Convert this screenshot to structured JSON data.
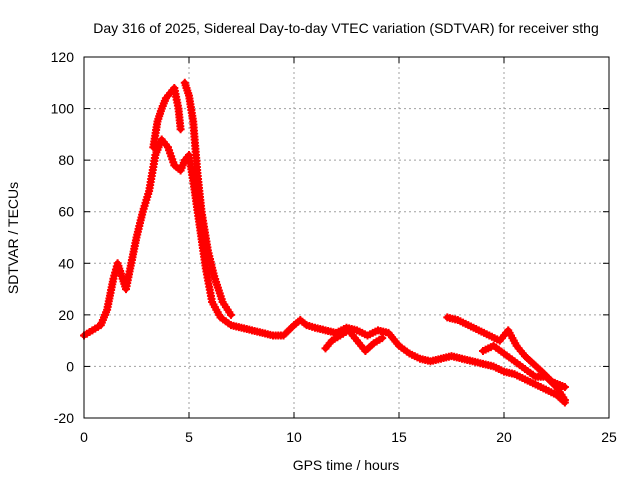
{
  "chart_data": {
    "type": "scatter",
    "title": "Day 316 of 2025, Sidereal Day-to-day VTEC variation (SDTVAR) for receiver sthg",
    "xlabel": "GPS time / hours",
    "ylabel": "SDTVAR / TECUs",
    "xlim": [
      0,
      25
    ],
    "ylim": [
      -20,
      120
    ],
    "xticks": [
      0,
      5,
      10,
      15,
      20,
      25
    ],
    "yticks": [
      -20,
      0,
      20,
      40,
      60,
      80,
      100,
      120
    ],
    "grid": true,
    "marker": "plus",
    "color": "#ff0000",
    "series": [
      {
        "name": "main",
        "x": [
          0,
          0.4,
          0.8,
          1.1,
          1.4,
          1.6,
          1.8,
          2.0,
          2.2,
          2.5,
          2.8,
          3.1,
          3.4,
          3.7,
          4.0,
          4.3,
          4.6,
          4.8,
          5.0,
          5.2,
          5.5,
          5.8,
          6.1,
          6.5,
          7.0,
          7.5,
          8.0,
          8.5,
          9.0,
          9.5,
          10.0,
          10.3,
          10.6,
          11.0,
          11.5,
          12.0,
          12.5,
          13.0,
          13.5,
          14.0,
          14.5,
          15.0,
          15.5,
          16.0,
          16.5,
          17.0,
          17.5,
          18.0,
          18.5,
          19.0,
          19.5,
          20.0,
          20.5,
          21.0,
          21.5,
          22.0,
          22.5,
          22.9
        ],
        "y": [
          12,
          14,
          16,
          22,
          34,
          40,
          35,
          30,
          38,
          50,
          60,
          68,
          82,
          88,
          85,
          78,
          76,
          80,
          82,
          72,
          55,
          38,
          25,
          19,
          16,
          15,
          14,
          13,
          12,
          12,
          16,
          18,
          16,
          15,
          14,
          13,
          15,
          14,
          12,
          14,
          13,
          8,
          5,
          3,
          2,
          3,
          4,
          3,
          2,
          1,
          0,
          -2,
          -3,
          -5,
          -7,
          -9,
          -11,
          -14
        ]
      },
      {
        "name": "upper-branch",
        "x": [
          3.3,
          3.5,
          3.7,
          3.9,
          4.1,
          4.3,
          4.5,
          4.6
        ],
        "y": [
          85,
          95,
          100,
          104,
          106,
          108,
          100,
          92
        ]
      },
      {
        "name": "peak-branch",
        "x": [
          4.8,
          5.0,
          5.2,
          5.4,
          5.6,
          5.9,
          6.2,
          6.6,
          7.0
        ],
        "y": [
          110,
          105,
          95,
          75,
          60,
          45,
          35,
          25,
          20
        ]
      },
      {
        "name": "late-branch-a",
        "x": [
          17.3,
          17.8,
          18.3,
          18.8,
          19.3,
          19.8,
          20.2,
          20.6,
          21.0,
          21.4,
          21.8,
          22.3,
          22.9
        ],
        "y": [
          19,
          18,
          16,
          14,
          12,
          10,
          14,
          8,
          4,
          1,
          -2,
          -6,
          -8
        ]
      },
      {
        "name": "late-branch-b",
        "x": [
          19.0,
          19.5,
          20.0,
          20.5,
          21.0,
          21.5,
          22.0,
          22.5,
          22.9
        ],
        "y": [
          6,
          8,
          5,
          2,
          -1,
          -4,
          -4,
          -8,
          -13
        ]
      },
      {
        "name": "mid-dips",
        "x": [
          11.5,
          11.8,
          12.2,
          12.6,
          13.0,
          13.4,
          13.8,
          14.2
        ],
        "y": [
          7,
          10,
          12,
          14,
          10,
          6,
          9,
          11
        ]
      }
    ]
  }
}
